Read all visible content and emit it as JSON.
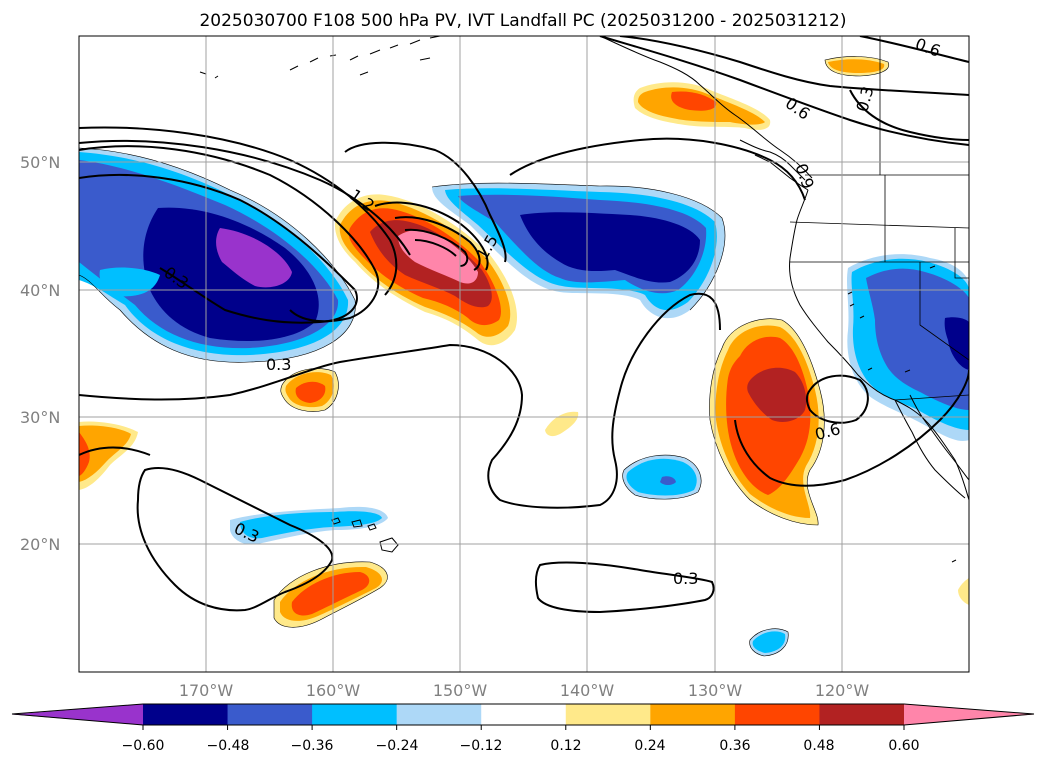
{
  "title": "2025030700 F108 500 hPa PV, IVT Landfall PC (2025031200 - 2025031212)",
  "lat_ticks": [
    "50°N",
    "40°N",
    "30°N",
    "20°N"
  ],
  "lon_ticks": [
    "170°W",
    "160°W",
    "150°W",
    "140°W",
    "130°W",
    "120°W"
  ],
  "contour_labels": [
    "1.2",
    "1.5",
    "0.3",
    "0.3",
    "0.3",
    "0.3",
    "0.6",
    "0.6",
    "0.6",
    "0.3",
    "0.9"
  ],
  "colorbar": {
    "ticks": [
      "−0.60",
      "−0.48",
      "−0.36",
      "−0.24",
      "−0.12",
      "0.12",
      "0.24",
      "0.36",
      "0.48",
      "0.60"
    ],
    "colors": [
      "#9933cc",
      "#00008b",
      "#3a5bcc",
      "#00bfff",
      "#add8f7",
      "#ffffff",
      "#ffe98a",
      "#ffa500",
      "#ff4500",
      "#b22222",
      "#ff85aa"
    ]
  }
}
